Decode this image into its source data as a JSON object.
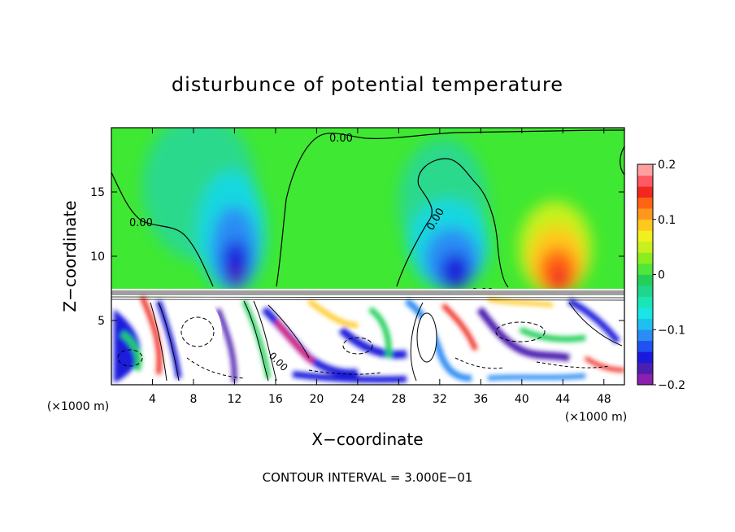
{
  "chart_data": {
    "type": "heatmap",
    "title": "disturbunce of potential temperature",
    "xlabel": "X−coordinate",
    "ylabel": "Z−coordinate",
    "x_unit_label": "(×1000 m)",
    "y_unit_label": "(×1000 m)",
    "xlim": [
      0,
      50
    ],
    "ylim": [
      0,
      20
    ],
    "x_ticks": [
      4,
      8,
      12,
      16,
      20,
      24,
      28,
      32,
      36,
      40,
      44,
      48
    ],
    "x_tick_labels": [
      "4",
      "8",
      "12",
      "16",
      "20",
      "24",
      "28",
      "32",
      "36",
      "40",
      "44",
      "48"
    ],
    "y_ticks": [
      5,
      10,
      15
    ],
    "y_tick_labels": [
      "5",
      "10",
      "15"
    ],
    "colorbar": {
      "range": [
        -0.2,
        0.2
      ],
      "ticks": [
        0.2,
        0.1,
        0,
        -0.1,
        -0.2
      ],
      "tick_labels": [
        "0.2",
        "0.1",
        "0",
        "−0.1",
        "−0.2"
      ],
      "colors": [
        "#8a1fb0",
        "#4b1fb0",
        "#1a1adc",
        "#1f52f0",
        "#2a8cf5",
        "#1fc0f0",
        "#18e6e6",
        "#1ae6b4",
        "#1ed68c",
        "#23cf5a",
        "#50e63c",
        "#8ced1e",
        "#c8f01e",
        "#f0f01e",
        "#ffc81e",
        "#ff961e",
        "#ff6414",
        "#f0281e",
        "#ff5a64",
        "#ffa0a0"
      ]
    },
    "contour_labels": [
      "0.00",
      "0.00",
      "0.00",
      "0.00",
      "0.00"
    ],
    "upper_features": [
      {
        "x": 12.0,
        "z": 10.5,
        "value": -0.18,
        "label": "cold anomaly"
      },
      {
        "x": 33.5,
        "z": 10.8,
        "value": -0.15,
        "label": "cold anomaly"
      },
      {
        "x": 43.5,
        "z": 10.0,
        "value": 0.14,
        "label": "warm anomaly"
      },
      {
        "x": 10.5,
        "z": 16.0,
        "value": -0.03,
        "label": "weak cold"
      }
    ],
    "annotation": "CONTOUR INTERVAL = 3.000E−01"
  }
}
